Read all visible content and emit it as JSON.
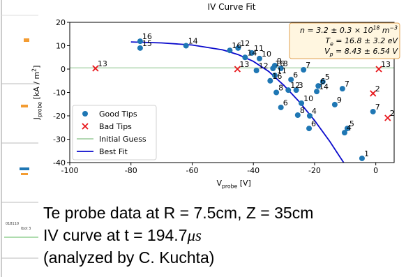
{
  "left_panel": {
    "labels": [
      "018110",
      "lbot 3"
    ]
  },
  "chart_data": {
    "type": "scatter",
    "title": "IV Curve Fit",
    "x_label": [
      {
        "t": "V"
      },
      {
        "t": "probe",
        "s": "sub"
      },
      {
        "t": " [V]"
      }
    ],
    "y_label": [
      {
        "t": "J"
      },
      {
        "t": "probe",
        "s": "sub"
      },
      {
        "t": " [kA / m"
      },
      {
        "t": "2",
        "s": "sup"
      },
      {
        "t": "]"
      }
    ],
    "xlim": [
      -100,
      6
    ],
    "ylim": [
      -40,
      20
    ],
    "xticks": [
      -100,
      -80,
      -60,
      -40,
      -20,
      0
    ],
    "yticks": [
      -40,
      -30,
      -20,
      -10,
      0,
      10,
      20
    ],
    "legend": "lower left",
    "annotation": [
      [
        {
          "t": "n = 3.2 ± 0.3 × 10"
        },
        {
          "t": "18",
          "s": "sup"
        },
        {
          "t": " m"
        },
        {
          "t": "−3",
          "s": "sup"
        }
      ],
      [
        {
          "t": "T"
        },
        {
          "t": "e",
          "s": "sub"
        },
        {
          "t": " = 16.8 ± 3.2 eV"
        }
      ],
      [
        {
          "t": "V"
        },
        {
          "t": "p",
          "s": "sub"
        },
        {
          "t": " = 8.43 ± 6.54 V"
        }
      ]
    ],
    "series": [
      {
        "name": "Good Tips",
        "color": "#1f77b4",
        "marker": "circle",
        "x": [
          -77,
          -77,
          -62,
          -47.7,
          -45,
          -42.7,
          -40.5,
          -38,
          -39,
          -33,
          -33.6,
          -31,
          -23.6,
          -33,
          -27.7,
          -34.5,
          -17.3,
          -32.5,
          -28.6,
          -26,
          -18.8,
          -19.3,
          -10.9,
          -24.3,
          -13.4,
          -31,
          -25.5,
          -21.6,
          -0.9,
          -21.8,
          -9.3,
          -10.2,
          -4.5
        ],
        "values": [
          11.9,
          9,
          10,
          8,
          9,
          5,
          6.9,
          4.5,
          -0.6,
          1.5,
          0.3,
          0.3,
          -0.3,
          -2.7,
          -4.5,
          -5,
          -5.4,
          -10,
          -9,
          -9,
          -7.2,
          -9.6,
          -8.4,
          -14.6,
          -15.2,
          -16.4,
          -19.7,
          -20,
          -18.2,
          -25.4,
          -25.4,
          -27.2,
          -38.2
        ],
        "point_labels": [
          "16",
          "15",
          "14",
          "16",
          "12",
          "14",
          "11",
          "10",
          "12",
          "9",
          "16",
          "8",
          "7",
          "11",
          "6",
          "16",
          "5",
          "8",
          "12",
          "3",
          "6",
          "14",
          "7",
          "10",
          "9",
          "6",
          "8",
          "4",
          "7",
          "6",
          "5",
          "4",
          "1"
        ]
      },
      {
        "name": "Bad Tips",
        "color": "#e8161b",
        "marker": "x",
        "x": [
          -91.6,
          -45.2,
          1,
          -0.9,
          3.9
        ],
        "values": [
          0.3,
          0,
          0,
          -10.4,
          -20.9
        ],
        "point_labels": [
          "13",
          "13",
          "13",
          "2",
          "2"
        ]
      },
      {
        "name": "Initial Guess",
        "color": "#a9d3a9",
        "marker": "line",
        "x": [
          -100,
          6
        ],
        "values": [
          0.5,
          0.5
        ]
      },
      {
        "name": "Best Fit",
        "color": "#0a0acc",
        "marker": "line",
        "x": [
          -80,
          -70,
          -60,
          -50,
          -45,
          -40,
          -35,
          -30,
          -25,
          -20,
          -15,
          -12,
          -10.5
        ],
        "values": [
          11.6,
          11.2,
          10.3,
          8.2,
          6.2,
          3.3,
          -1,
          -7,
          -14,
          -22,
          -31,
          -37,
          -40
        ]
      }
    ]
  },
  "caption": {
    "lines": [
      [
        {
          "t": "Te probe data at R = 7.5cm, Z = 35cm"
        }
      ],
      [
        {
          "t": "IV curve at t = 194.7"
        },
        {
          "t": "μs",
          "s": "it"
        }
      ],
      [
        {
          "t": "(analyzed by C. Kuchta)"
        }
      ]
    ]
  }
}
